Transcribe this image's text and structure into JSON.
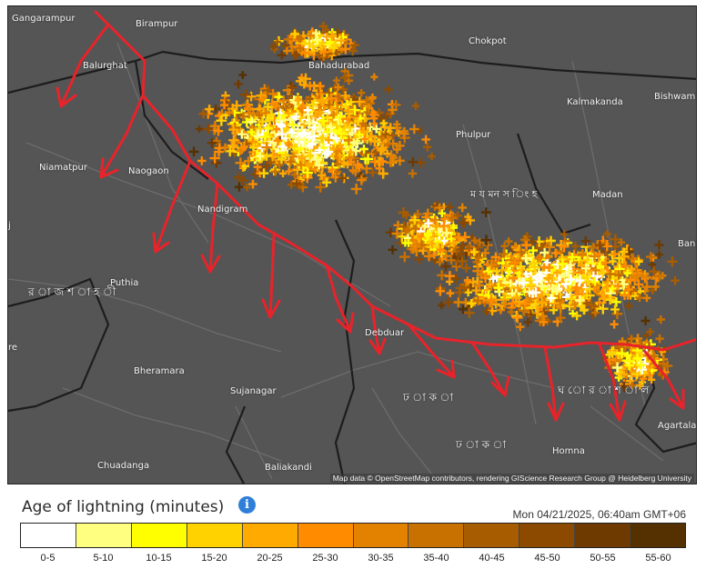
{
  "map": {
    "places": [
      {
        "id": "gangarampur",
        "label": "Gangarampur"
      },
      {
        "id": "birampur",
        "label": "Birampur"
      },
      {
        "id": "balurghat",
        "label": "Balurghat"
      },
      {
        "id": "bahadurabad",
        "label": "Bahadurabad"
      },
      {
        "id": "chokpot",
        "label": "Chokpot"
      },
      {
        "id": "bishwamb",
        "label": "Bishwamb"
      },
      {
        "id": "kalmakanda",
        "label": "Kalmakanda"
      },
      {
        "id": "phulpur",
        "label": "Phulpur"
      },
      {
        "id": "niamatpur",
        "label": "Niamatpur"
      },
      {
        "id": "naogaon",
        "label": "Naogaon"
      },
      {
        "id": "nandigram",
        "label": "Nandigram"
      },
      {
        "id": "puthia",
        "label": "Puthia"
      },
      {
        "id": "rajshahi",
        "label": "র া জ শ া হ ী"
      },
      {
        "id": "mymensingh",
        "label": "ম য মন স িং হ"
      },
      {
        "id": "madan",
        "label": "Madan"
      },
      {
        "id": "bani",
        "label": "Bani"
      },
      {
        "id": "debduar",
        "label": "Debduar"
      },
      {
        "id": "bheramara",
        "label": "Bheramara"
      },
      {
        "id": "sujanagar",
        "label": "Sujanagar"
      },
      {
        "id": "dhaka_div",
        "label": "ঢ া ক া"
      },
      {
        "id": "dhaka",
        "label": "ঢ া ক া"
      },
      {
        "id": "ghorasal",
        "label": "ঘ ো র া শ া ল"
      },
      {
        "id": "homna",
        "label": "Homna"
      },
      {
        "id": "agartala",
        "label": "Agartala"
      },
      {
        "id": "chuadanga",
        "label": "Chuadanga"
      },
      {
        "id": "baliakandi",
        "label": "Baliakandi"
      },
      {
        "id": "j_edge",
        "label": "j"
      },
      {
        "id": "re_edge",
        "label": "re"
      }
    ],
    "attribution": "Map data © OpenStreetMap contributors, rendering GIScience Research Group @ Heidelberg University",
    "colors": {
      "land": "#555555",
      "border": "#1d1d1d",
      "roads": "#6c6c6c",
      "arrows": "#e8232a"
    }
  },
  "legend": {
    "title": "Age of lightning (minutes)",
    "info_icon": "info-icon",
    "timestamp": "Mon 04/21/2025, 06:40am GMT+06",
    "bins": [
      {
        "label": "0-5",
        "color": "#ffffff"
      },
      {
        "label": "5-10",
        "color": "#ffff80"
      },
      {
        "label": "10-15",
        "color": "#ffff00"
      },
      {
        "label": "15-20",
        "color": "#ffd200"
      },
      {
        "label": "20-25",
        "color": "#ffaa00"
      },
      {
        "label": "25-30",
        "color": "#ff8c00"
      },
      {
        "label": "30-35",
        "color": "#e38200"
      },
      {
        "label": "35-40",
        "color": "#c87000"
      },
      {
        "label": "40-45",
        "color": "#a85c00"
      },
      {
        "label": "45-50",
        "color": "#8c4a00"
      },
      {
        "label": "50-55",
        "color": "#6e3a00"
      },
      {
        "label": "55-60",
        "color": "#553000"
      }
    ]
  }
}
